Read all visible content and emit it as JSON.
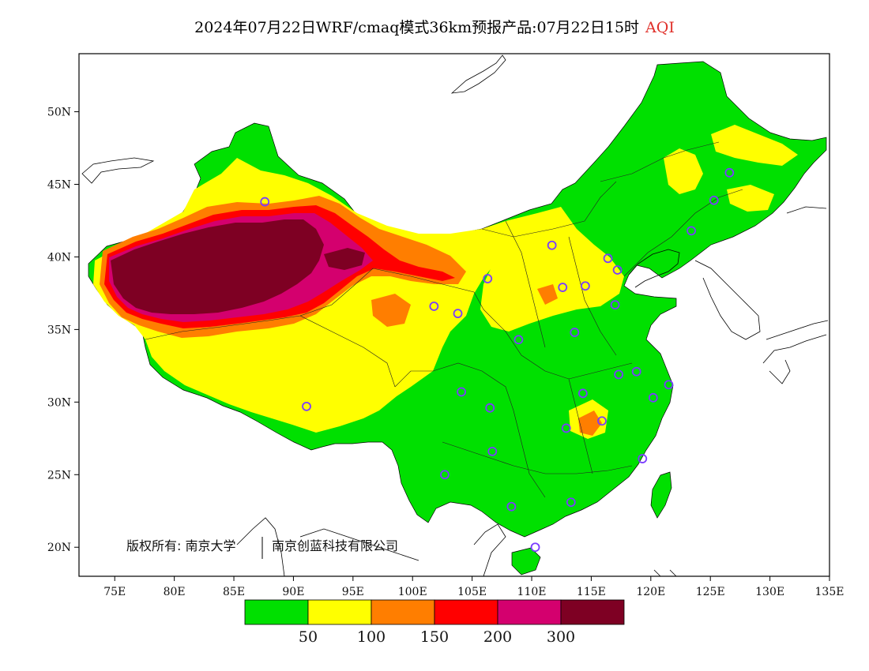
{
  "title": {
    "main": "2024年07月22日WRF/cmaq模式36km预报产品:07月22日15时",
    "product": "AQI"
  },
  "map": {
    "lon_range": [
      72,
      135
    ],
    "lat_range": [
      18,
      54
    ],
    "x_ticks": [
      "75E",
      "80E",
      "85E",
      "90E",
      "95E",
      "100E",
      "105E",
      "110E",
      "115E",
      "120E",
      "125E",
      "130E",
      "135E"
    ],
    "x_tick_values": [
      75,
      80,
      85,
      90,
      95,
      100,
      105,
      110,
      115,
      120,
      125,
      130,
      135
    ],
    "y_ticks": [
      "20N",
      "25N",
      "30N",
      "35N",
      "40N",
      "45N",
      "50N"
    ],
    "y_tick_values": [
      20,
      25,
      30,
      35,
      40,
      45,
      50
    ],
    "copyright": "版权所有: 南京大学",
    "copyright2": "南京创蓝科技有限公司"
  },
  "legend": {
    "colors": [
      "#00e000",
      "#ffff00",
      "#ff7e00",
      "#ff0000",
      "#d4006e",
      "#7e0023"
    ],
    "breaks": [
      "50",
      "100",
      "150",
      "200",
      "300"
    ]
  },
  "stations": [
    [
      87.6,
      43.8
    ],
    [
      91.1,
      29.7
    ],
    [
      101.8,
      36.6
    ],
    [
      103.8,
      36.1
    ],
    [
      106.3,
      38.5
    ],
    [
      111.7,
      40.8
    ],
    [
      114.5,
      38.0
    ],
    [
      112.6,
      37.9
    ],
    [
      116.4,
      39.9
    ],
    [
      117.2,
      39.1
    ],
    [
      113.6,
      34.8
    ],
    [
      117.0,
      36.7
    ],
    [
      108.9,
      34.3
    ],
    [
      104.1,
      30.7
    ],
    [
      106.5,
      29.6
    ],
    [
      106.7,
      26.6
    ],
    [
      102.7,
      25.0
    ],
    [
      108.3,
      22.8
    ],
    [
      113.3,
      23.1
    ],
    [
      110.3,
      20.0
    ],
    [
      119.3,
      26.1
    ],
    [
      120.2,
      30.3
    ],
    [
      118.8,
      32.1
    ],
    [
      121.5,
      31.2
    ],
    [
      117.3,
      31.9
    ],
    [
      115.9,
      28.7
    ],
    [
      112.9,
      28.2
    ],
    [
      114.3,
      30.6
    ],
    [
      123.4,
      41.8
    ],
    [
      125.3,
      43.9
    ],
    [
      126.6,
      45.8
    ]
  ]
}
